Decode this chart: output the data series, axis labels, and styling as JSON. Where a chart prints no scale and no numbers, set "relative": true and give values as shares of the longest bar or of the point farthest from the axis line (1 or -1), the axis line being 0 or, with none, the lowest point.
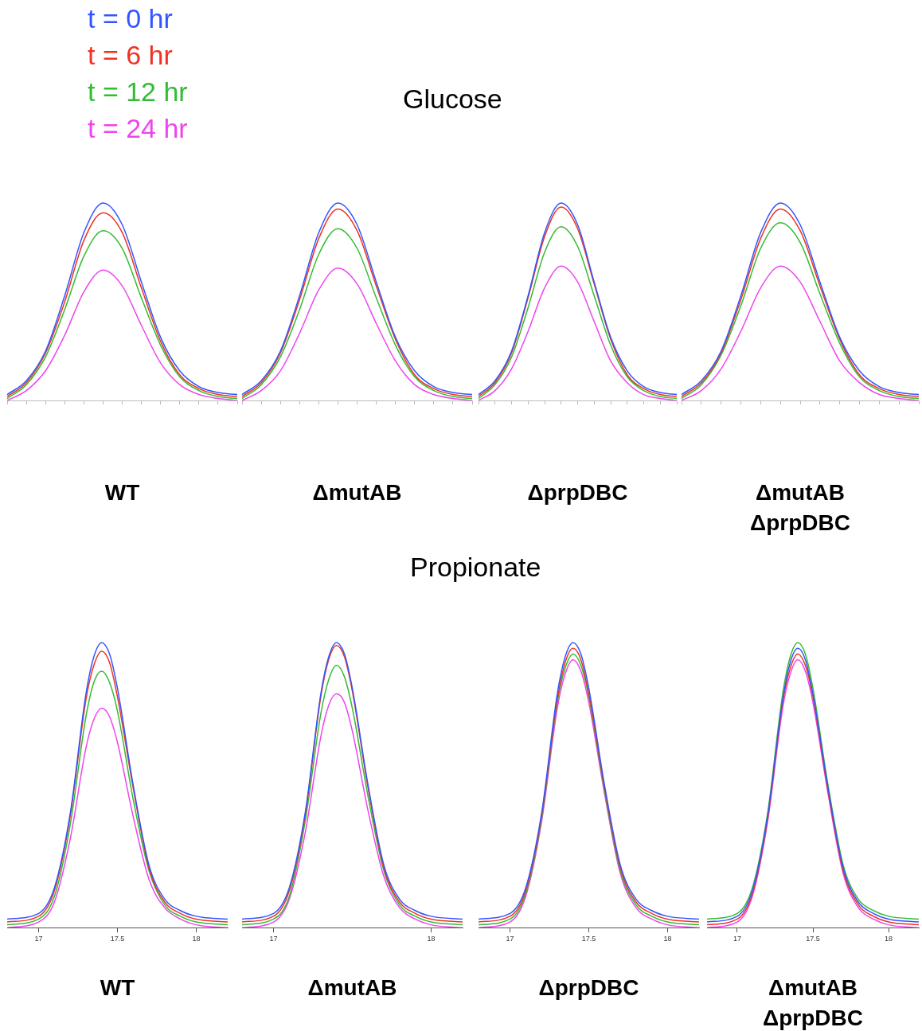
{
  "chart_data": [
    {
      "type": "other",
      "title": "Glucose"
    },
    {
      "type": "line",
      "xlabel": "WT",
      "relative": true,
      "tick_labels": false,
      "legend": "top",
      "categories": [
        null,
        null,
        null,
        null,
        null,
        null,
        null,
        null,
        null,
        null,
        null,
        null,
        null
      ],
      "series": [
        {
          "name": "t = 0 hr",
          "color": "#3355ff",
          "values": [
            0.03,
            0.1,
            0.25,
            0.53,
            0.85,
            1,
            0.89,
            0.6,
            0.32,
            0.15,
            0.07,
            0.04,
            0.03
          ]
        },
        {
          "name": "t = 6 hr",
          "color": "#ee3322",
          "values": [
            0.02,
            0.09,
            0.24,
            0.5,
            0.81,
            0.95,
            0.85,
            0.57,
            0.3,
            0.13,
            0.06,
            0.03,
            0.02
          ]
        },
        {
          "name": "t = 12 hr",
          "color": "#33bb33",
          "values": [
            0.01,
            0.08,
            0.22,
            0.46,
            0.73,
            0.86,
            0.77,
            0.52,
            0.28,
            0.12,
            0.05,
            0.02,
            0.01
          ]
        },
        {
          "name": "t = 24 hr",
          "color": "#ee44ee",
          "values": [
            0,
            0.05,
            0.15,
            0.33,
            0.55,
            0.66,
            0.58,
            0.38,
            0.19,
            0.08,
            0.03,
            0.01,
            0
          ]
        }
      ]
    },
    {
      "type": "line",
      "xlabel": "ΔmutAB",
      "relative": true,
      "tick_labels": false,
      "categories": [
        null,
        null,
        null,
        null,
        null,
        null,
        null,
        null,
        null,
        null,
        null,
        null,
        null
      ],
      "series": [
        {
          "color": "#3355ff",
          "values": [
            0.03,
            0.1,
            0.25,
            0.53,
            0.85,
            1,
            0.89,
            0.6,
            0.32,
            0.15,
            0.07,
            0.04,
            0.03
          ]
        },
        {
          "color": "#ee3322",
          "values": [
            0.02,
            0.09,
            0.24,
            0.51,
            0.82,
            0.97,
            0.86,
            0.58,
            0.31,
            0.13,
            0.06,
            0.03,
            0.02
          ]
        },
        {
          "color": "#33bb33",
          "values": [
            0.01,
            0.08,
            0.22,
            0.46,
            0.74,
            0.87,
            0.77,
            0.52,
            0.28,
            0.12,
            0.05,
            0.02,
            0.01
          ]
        },
        {
          "color": "#ee44ee",
          "values": [
            0,
            0.05,
            0.15,
            0.34,
            0.56,
            0.67,
            0.59,
            0.39,
            0.2,
            0.08,
            0.03,
            0.01,
            0
          ]
        }
      ]
    },
    {
      "type": "line",
      "xlabel": "ΔprpDBC",
      "relative": true,
      "tick_labels": false,
      "categories": [
        null,
        null,
        null,
        null,
        null,
        null,
        null,
        null,
        null,
        null,
        null,
        null,
        null
      ],
      "series": [
        {
          "color": "#3355ff",
          "values": [
            0.03,
            0.1,
            0.25,
            0.53,
            0.85,
            1,
            0.89,
            0.6,
            0.32,
            0.15,
            0.07,
            0.04,
            0.03
          ]
        },
        {
          "color": "#ee3322",
          "values": [
            0.02,
            0.09,
            0.24,
            0.52,
            0.83,
            0.98,
            0.87,
            0.59,
            0.31,
            0.13,
            0.06,
            0.03,
            0.02
          ]
        },
        {
          "color": "#33bb33",
          "values": [
            0.01,
            0.08,
            0.22,
            0.47,
            0.75,
            0.88,
            0.78,
            0.53,
            0.28,
            0.12,
            0.05,
            0.02,
            0.01
          ]
        },
        {
          "color": "#ee44ee",
          "values": [
            0,
            0.05,
            0.16,
            0.35,
            0.57,
            0.68,
            0.6,
            0.4,
            0.2,
            0.09,
            0.03,
            0.01,
            0
          ]
        }
      ]
    },
    {
      "type": "line",
      "xlabel": "ΔmutAB ΔprpDBC",
      "relative": true,
      "tick_labels": false,
      "categories": [
        null,
        null,
        null,
        null,
        null,
        null,
        null,
        null,
        null,
        null,
        null,
        null,
        null
      ],
      "series": [
        {
          "color": "#3355ff",
          "values": [
            0.03,
            0.1,
            0.25,
            0.53,
            0.85,
            1,
            0.89,
            0.6,
            0.32,
            0.15,
            0.07,
            0.04,
            0.03
          ]
        },
        {
          "color": "#ee3322",
          "values": [
            0.02,
            0.09,
            0.24,
            0.51,
            0.82,
            0.97,
            0.86,
            0.58,
            0.31,
            0.13,
            0.06,
            0.03,
            0.02
          ]
        },
        {
          "color": "#33bb33",
          "values": [
            0.01,
            0.08,
            0.23,
            0.48,
            0.77,
            0.9,
            0.8,
            0.54,
            0.29,
            0.12,
            0.05,
            0.02,
            0.01
          ]
        },
        {
          "color": "#ee44ee",
          "values": [
            0,
            0.05,
            0.16,
            0.35,
            0.57,
            0.68,
            0.6,
            0.4,
            0.2,
            0.09,
            0.03,
            0.01,
            0
          ]
        }
      ]
    },
    {
      "type": "other",
      "title": "Propionate"
    },
    {
      "type": "line",
      "xlabel": "WT",
      "relative": true,
      "tick_labels": "x",
      "xlim": [
        16.8,
        18.2
      ],
      "xticks": [
        17,
        17.5,
        18
      ],
      "x": [
        16.8,
        17.0,
        17.1,
        17.2,
        17.3,
        17.35,
        17.4,
        17.45,
        17.5,
        17.6,
        17.7,
        17.8,
        17.9,
        18.0,
        18.2
      ],
      "series": [
        {
          "color": "#3355ff",
          "values": [
            0.03,
            0.05,
            0.14,
            0.4,
            0.82,
            0.95,
            1,
            0.96,
            0.84,
            0.5,
            0.22,
            0.1,
            0.06,
            0.04,
            0.03
          ]
        },
        {
          "color": "#ee3322",
          "values": [
            0.02,
            0.04,
            0.13,
            0.39,
            0.8,
            0.92,
            0.97,
            0.93,
            0.81,
            0.49,
            0.21,
            0.09,
            0.05,
            0.03,
            0.02
          ]
        },
        {
          "color": "#33bb33",
          "values": [
            0.01,
            0.03,
            0.11,
            0.36,
            0.74,
            0.86,
            0.9,
            0.86,
            0.76,
            0.45,
            0.2,
            0.08,
            0.04,
            0.02,
            0.01
          ]
        },
        {
          "color": "#ee44ee",
          "values": [
            0,
            0.02,
            0.09,
            0.31,
            0.63,
            0.73,
            0.77,
            0.74,
            0.65,
            0.39,
            0.17,
            0.07,
            0.03,
            0.01,
            0
          ]
        }
      ]
    },
    {
      "type": "line",
      "xlabel": "ΔmutAB",
      "relative": true,
      "tick_labels": "x",
      "xlim": [
        16.8,
        18.2
      ],
      "xticks": [
        17,
        18
      ],
      "x": [
        16.8,
        17.0,
        17.1,
        17.2,
        17.3,
        17.35,
        17.4,
        17.45,
        17.5,
        17.6,
        17.7,
        17.8,
        17.9,
        18.0,
        18.2
      ],
      "series": [
        {
          "color": "#3355ff",
          "values": [
            0.03,
            0.05,
            0.14,
            0.4,
            0.82,
            0.95,
            1,
            0.96,
            0.84,
            0.5,
            0.22,
            0.1,
            0.06,
            0.04,
            0.03
          ]
        },
        {
          "color": "#ee3322",
          "values": [
            0.02,
            0.04,
            0.13,
            0.39,
            0.81,
            0.94,
            0.99,
            0.95,
            0.83,
            0.49,
            0.21,
            0.09,
            0.05,
            0.03,
            0.02
          ]
        },
        {
          "color": "#33bb33",
          "values": [
            0.01,
            0.03,
            0.11,
            0.37,
            0.75,
            0.87,
            0.92,
            0.88,
            0.77,
            0.46,
            0.2,
            0.08,
            0.04,
            0.02,
            0.01
          ]
        },
        {
          "color": "#ee44ee",
          "values": [
            0,
            0.02,
            0.1,
            0.33,
            0.67,
            0.78,
            0.82,
            0.79,
            0.69,
            0.41,
            0.18,
            0.07,
            0.03,
            0.01,
            0
          ]
        }
      ]
    },
    {
      "type": "line",
      "xlabel": "ΔprpDBC",
      "relative": true,
      "tick_labels": "x",
      "xlim": [
        16.8,
        18.2
      ],
      "xticks": [
        17,
        17.5,
        18
      ],
      "x": [
        16.8,
        17.0,
        17.1,
        17.2,
        17.3,
        17.35,
        17.4,
        17.45,
        17.5,
        17.6,
        17.7,
        17.8,
        17.9,
        18.0,
        18.2
      ],
      "series": [
        {
          "color": "#3355ff",
          "values": [
            0.03,
            0.05,
            0.14,
            0.4,
            0.82,
            0.95,
            1,
            0.96,
            0.84,
            0.5,
            0.22,
            0.1,
            0.06,
            0.04,
            0.03
          ]
        },
        {
          "color": "#ee3322",
          "values": [
            0.02,
            0.04,
            0.13,
            0.39,
            0.8,
            0.93,
            0.98,
            0.94,
            0.82,
            0.49,
            0.21,
            0.09,
            0.05,
            0.03,
            0.02
          ]
        },
        {
          "color": "#33bb33",
          "values": [
            0.01,
            0.03,
            0.12,
            0.38,
            0.79,
            0.91,
            0.96,
            0.92,
            0.81,
            0.48,
            0.2,
            0.08,
            0.04,
            0.02,
            0.01
          ]
        },
        {
          "color": "#ee44ee",
          "values": [
            0,
            0.02,
            0.11,
            0.37,
            0.77,
            0.89,
            0.94,
            0.9,
            0.79,
            0.47,
            0.19,
            0.07,
            0.03,
            0.01,
            0
          ]
        }
      ]
    },
    {
      "type": "line",
      "xlabel": "ΔmutAB ΔprpDBC",
      "relative": true,
      "tick_labels": "x",
      "xlim": [
        16.8,
        18.2
      ],
      "xticks": [
        17,
        17.5,
        18
      ],
      "x": [
        16.8,
        17.0,
        17.1,
        17.2,
        17.3,
        17.35,
        17.4,
        17.45,
        17.5,
        17.6,
        17.7,
        17.8,
        17.9,
        18.0,
        18.2
      ],
      "series": [
        {
          "color": "#3355ff",
          "values": [
            0.02,
            0.04,
            0.13,
            0.39,
            0.8,
            0.93,
            0.98,
            0.94,
            0.82,
            0.49,
            0.21,
            0.09,
            0.05,
            0.03,
            0.02
          ]
        },
        {
          "color": "#ee3322",
          "values": [
            0.01,
            0.03,
            0.12,
            0.38,
            0.79,
            0.91,
            0.96,
            0.92,
            0.81,
            0.48,
            0.2,
            0.08,
            0.04,
            0.02,
            0.01
          ]
        },
        {
          "color": "#33bb33",
          "values": [
            0.03,
            0.05,
            0.14,
            0.4,
            0.82,
            0.95,
            1,
            0.96,
            0.84,
            0.5,
            0.22,
            0.1,
            0.06,
            0.04,
            0.03
          ]
        },
        {
          "color": "#ee44ee",
          "values": [
            0,
            0.02,
            0.11,
            0.37,
            0.77,
            0.89,
            0.94,
            0.9,
            0.79,
            0.47,
            0.19,
            0.07,
            0.03,
            0.01,
            0
          ]
        }
      ]
    }
  ]
}
